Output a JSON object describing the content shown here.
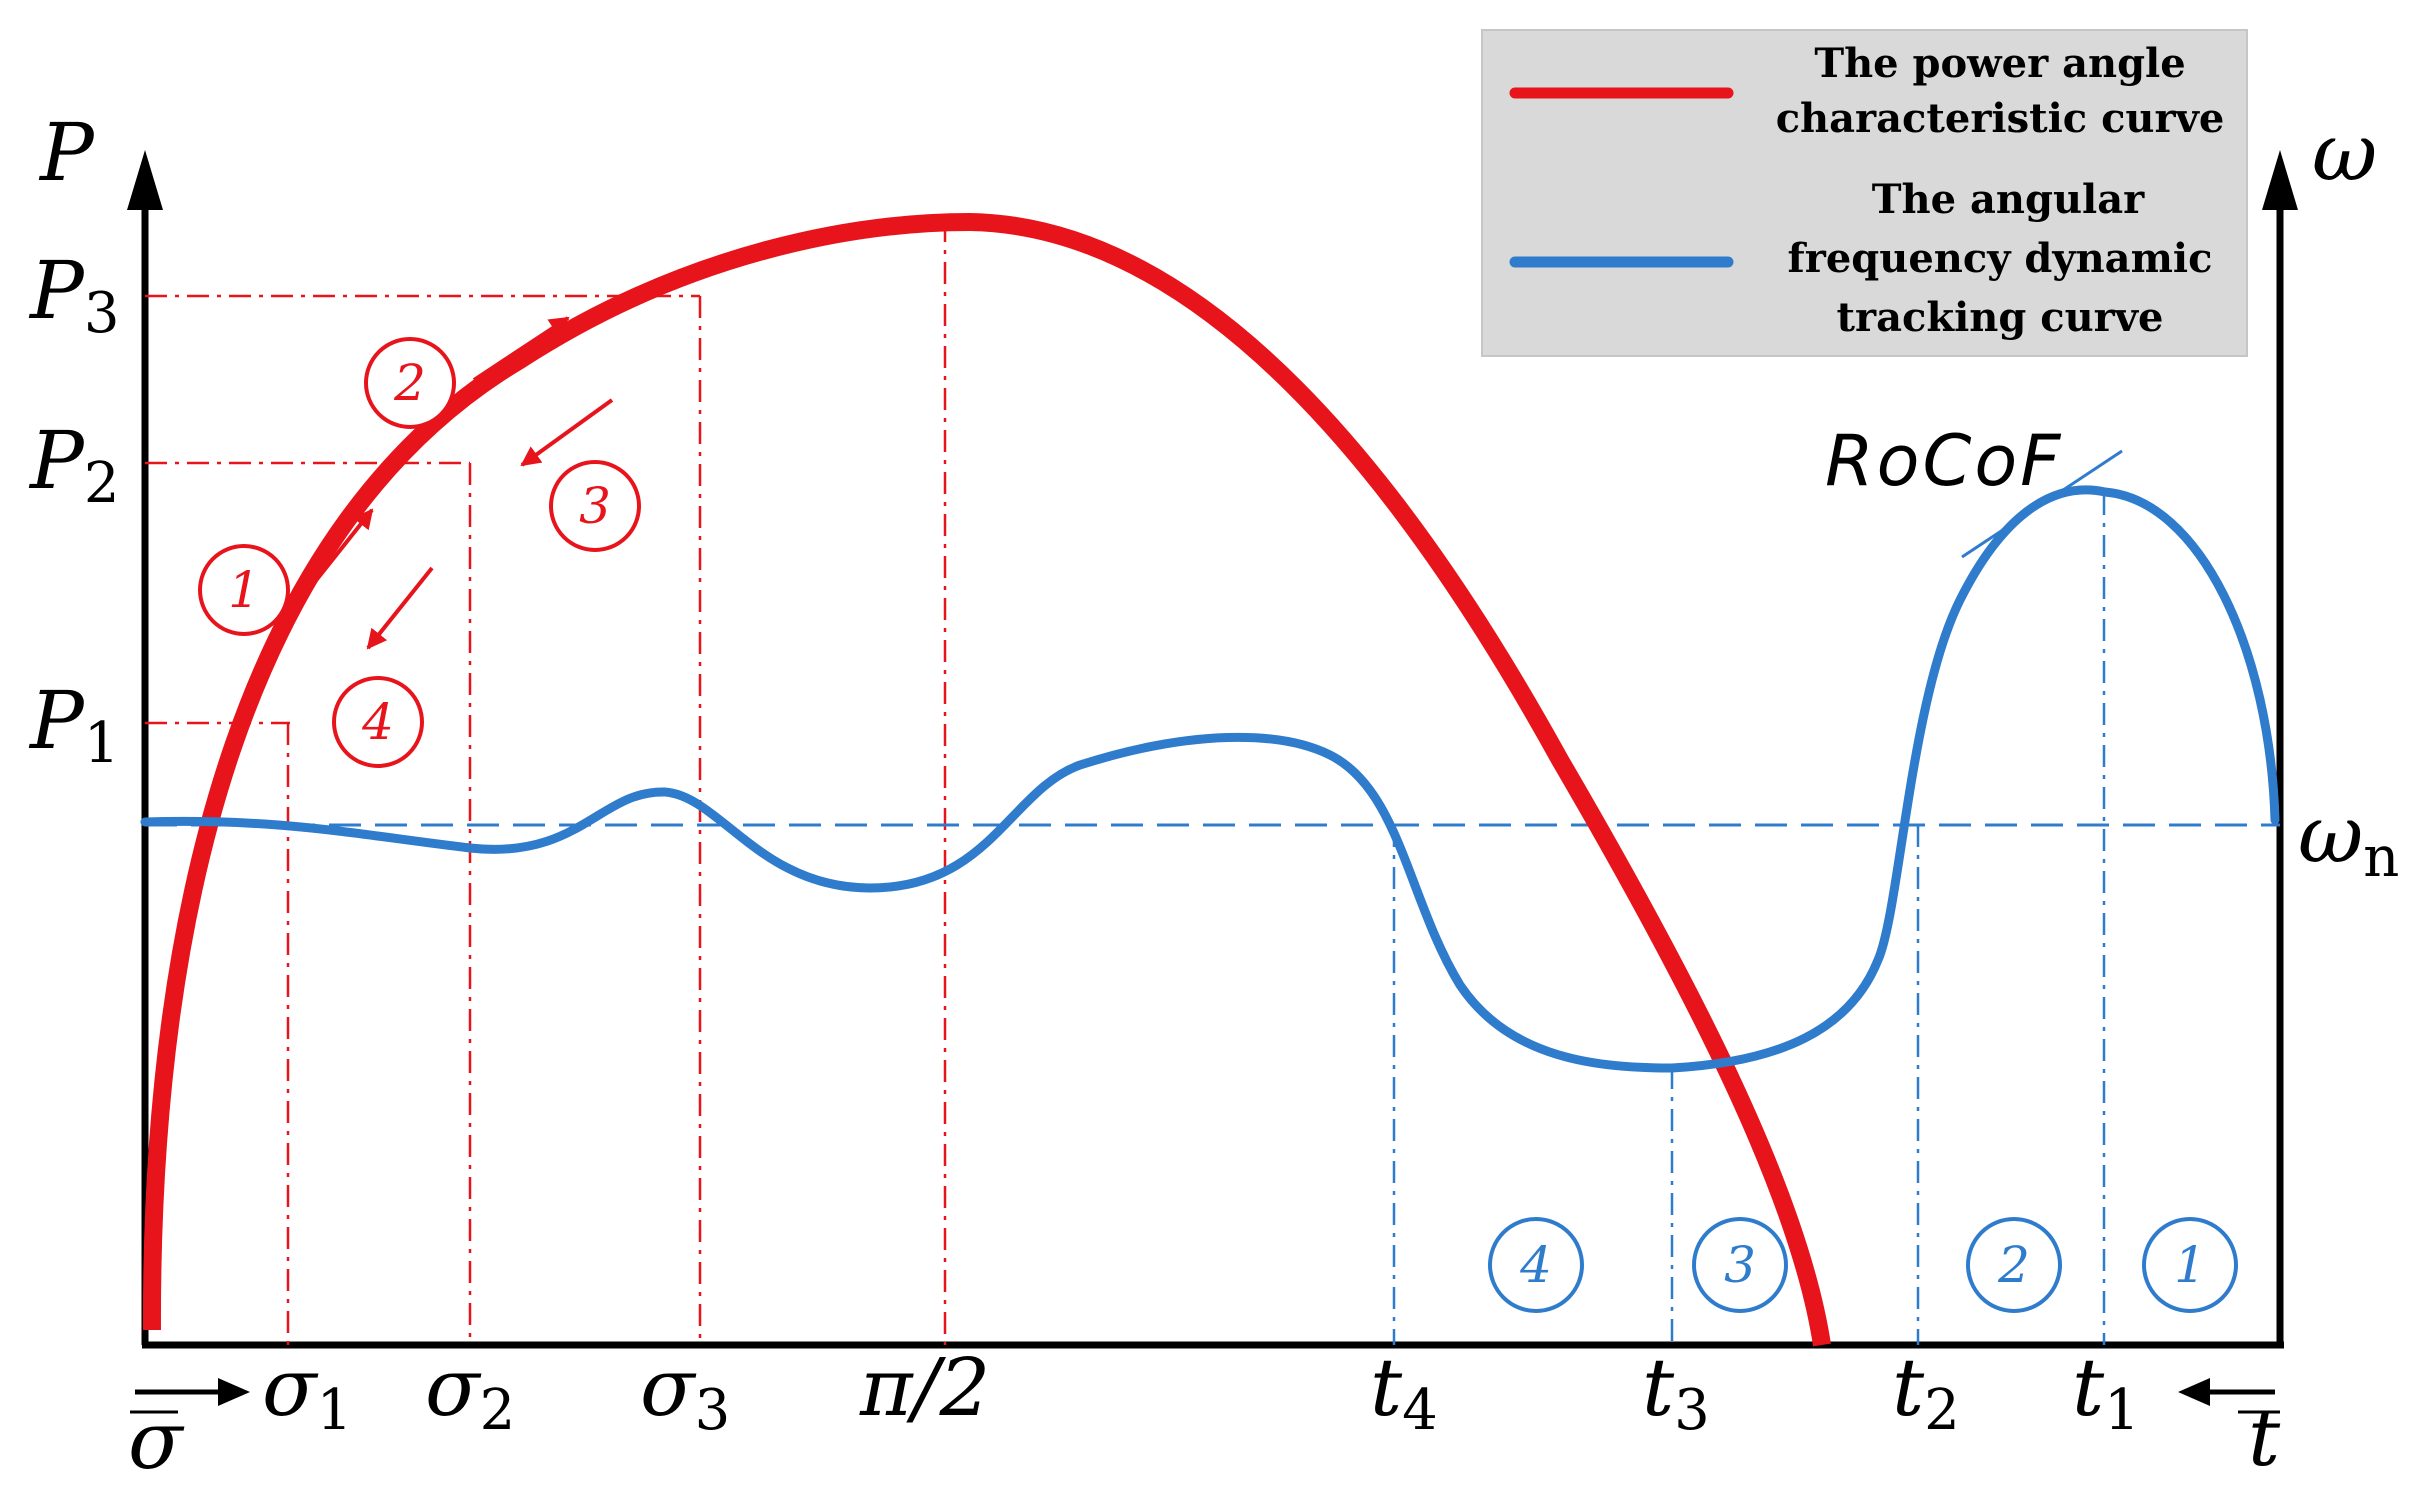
{
  "axes": {
    "left_label": "P",
    "right_label": "ω",
    "bottom_left_label": "σ",
    "bottom_right_label": "t"
  },
  "y_labels": [
    {
      "main": "P",
      "sub": "3"
    },
    {
      "main": "P",
      "sub": "2"
    },
    {
      "main": "P",
      "sub": "1"
    }
  ],
  "x_labels_left": [
    {
      "main": "σ",
      "sub": "1"
    },
    {
      "main": "σ",
      "sub": "2"
    },
    {
      "main": "σ",
      "sub": "3"
    },
    {
      "main": "π/2",
      "sub": ""
    }
  ],
  "x_labels_right": [
    {
      "main": "t",
      "sub": "4"
    },
    {
      "main": "t",
      "sub": "3"
    },
    {
      "main": "t",
      "sub": "2"
    },
    {
      "main": "t",
      "sub": "1"
    }
  ],
  "omega_n": {
    "main": "ω",
    "sub": "n"
  },
  "rocof": "RoCoF",
  "red_steps": [
    "1",
    "2",
    "3",
    "4"
  ],
  "blue_steps": [
    "4",
    "3",
    "2",
    "1"
  ],
  "legend": {
    "power_curve": [
      "The power angle",
      "characteristic curve"
    ],
    "frequency_curve": [
      "The angular",
      "frequency  dynamic",
      "tracking curve"
    ]
  },
  "colors": {
    "power_curve": "#e8141c",
    "frequency_curve": "#2f7ccd",
    "legend_bg": "#d9d9d9"
  }
}
